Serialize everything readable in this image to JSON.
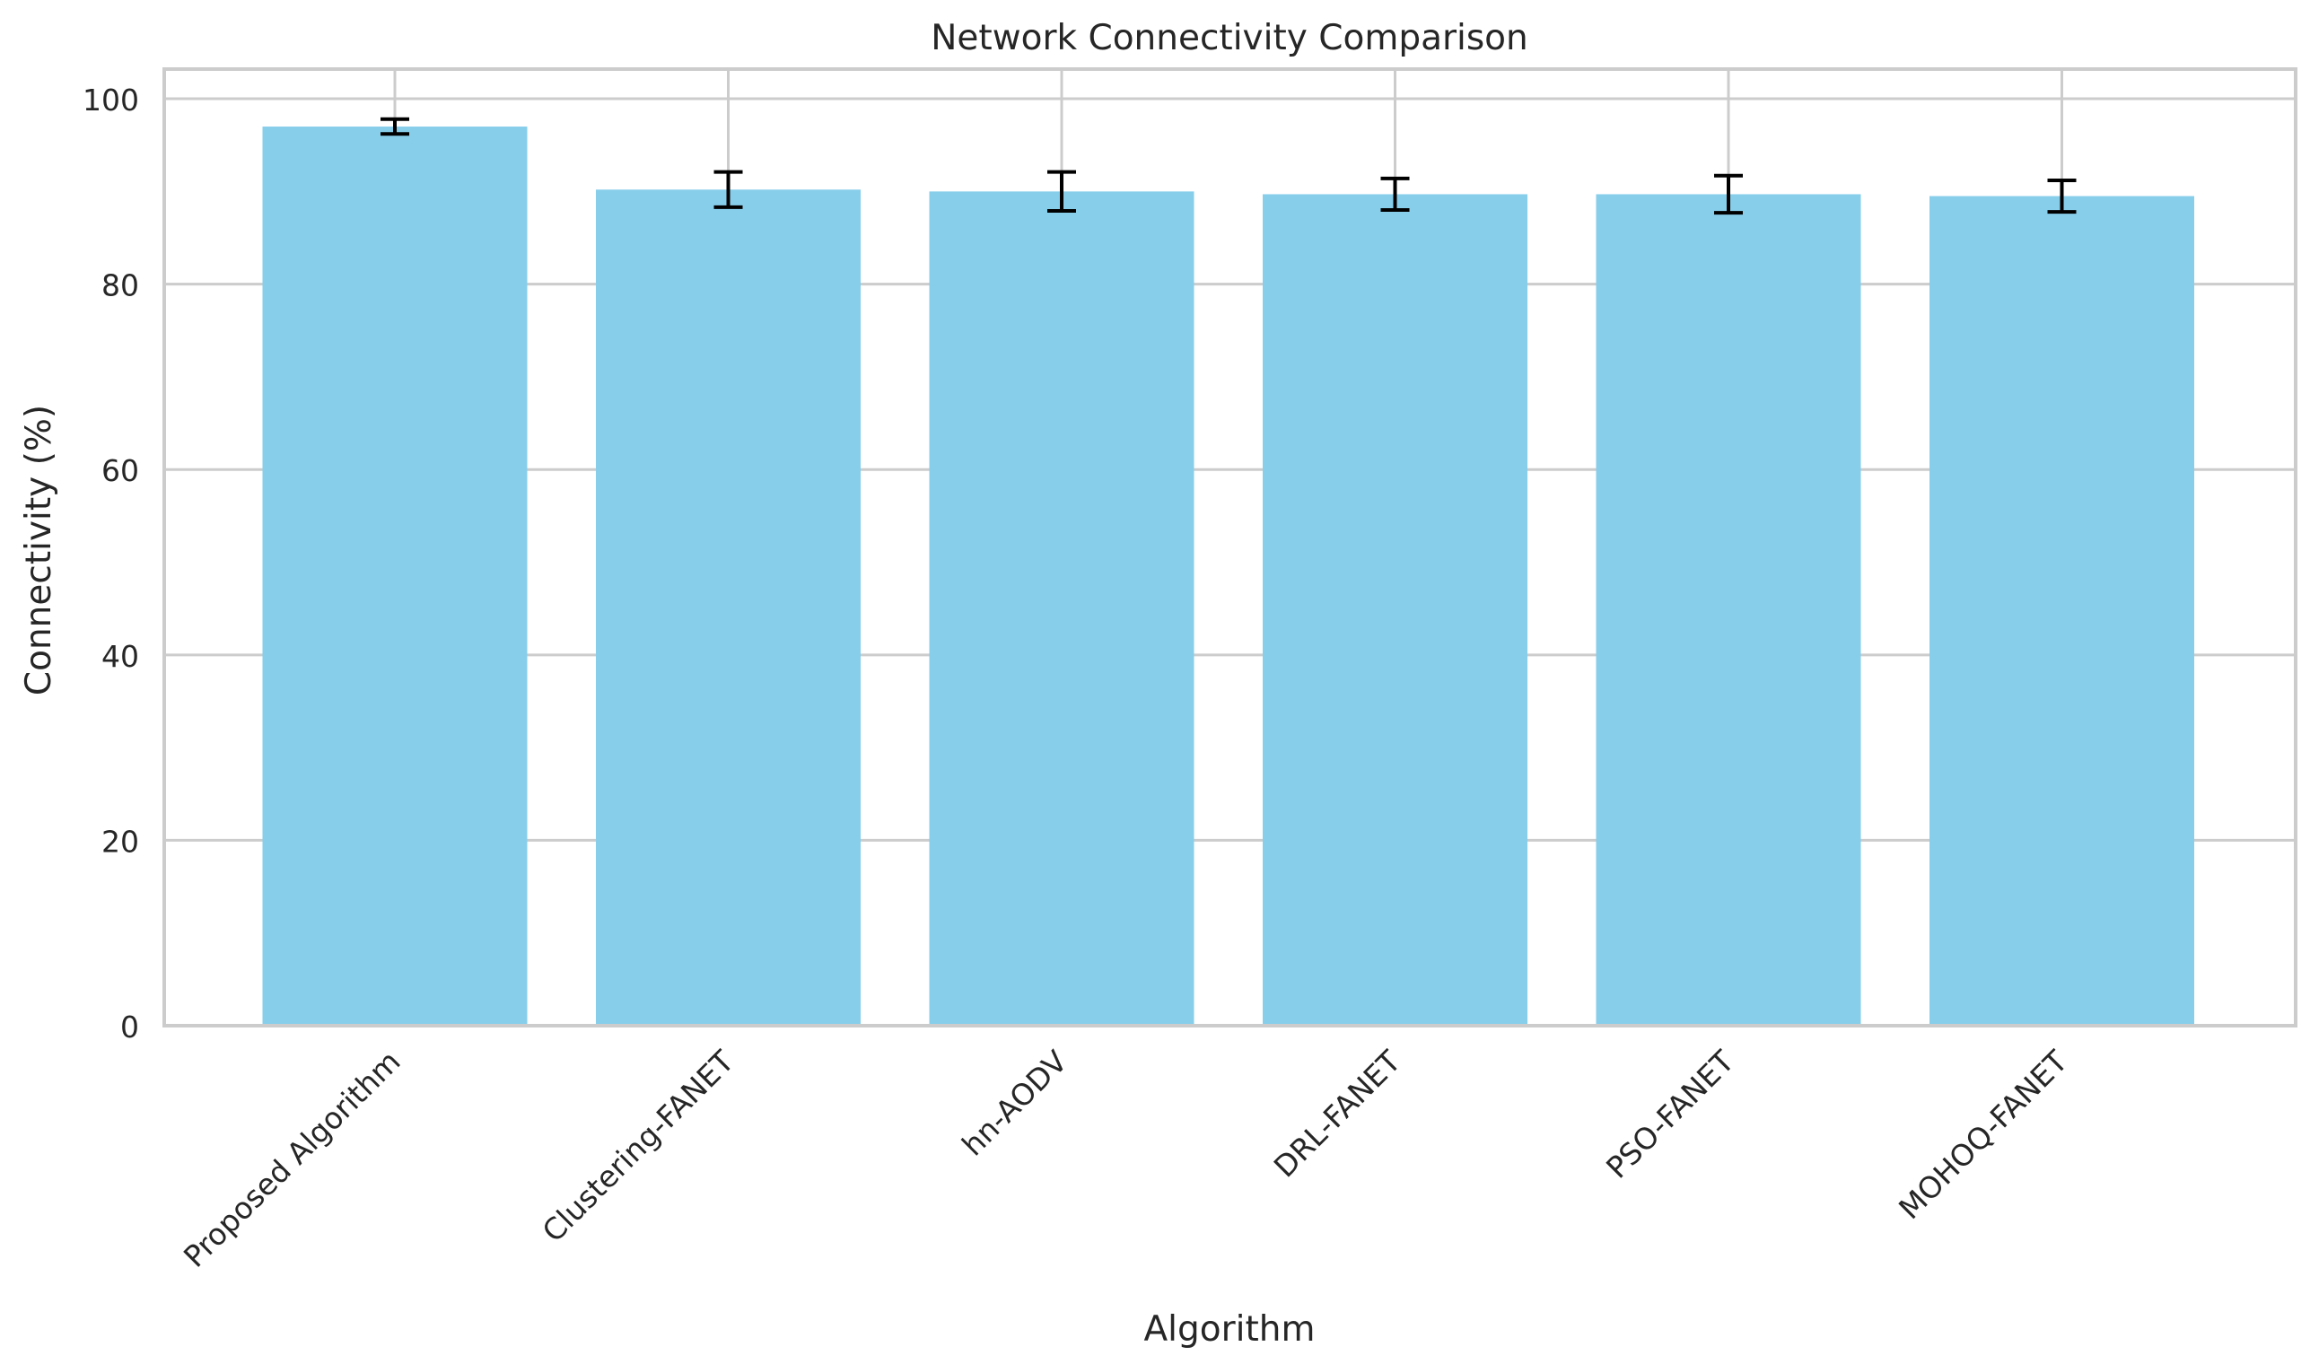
{
  "chart_data": {
    "type": "bar",
    "title": "Network Connectivity Comparison",
    "xlabel": "Algorithm",
    "ylabel": "Connectivity (%)",
    "categories": [
      "Proposed Algorithm",
      "Clustering-FANET",
      "hn-AODV",
      "DRL-FANET",
      "PSO-FANET",
      "MOHOQ-FANET"
    ],
    "values": [
      97.0,
      90.2,
      90.0,
      89.7,
      89.7,
      89.5
    ],
    "errors": [
      0.8,
      1.9,
      2.1,
      1.7,
      2.0,
      1.7
    ],
    "ylim": [
      0,
      103.2
    ],
    "yticks": [
      0,
      20,
      40,
      60,
      80,
      100
    ],
    "grid": true,
    "legend": "none",
    "colors": {
      "bar": "#87ceeb",
      "error_bar": "#000000",
      "grid": "#cccccc",
      "axes_edge": "#cccccc",
      "text": "#262626",
      "background": "#ffffff"
    }
  }
}
